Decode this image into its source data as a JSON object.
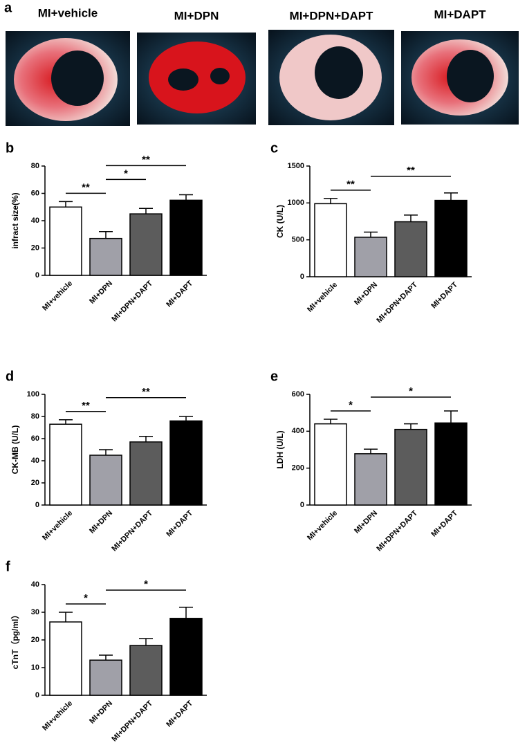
{
  "image_panel": {
    "label": "a",
    "captions": [
      "MI+vehicle",
      "MI+DPN",
      "MI+DPN+DAPT",
      "MI+DAPT"
    ]
  },
  "chart_data": [
    {
      "type": "bar",
      "panel": "b",
      "y_label": "infract size(%)",
      "categories": [
        "MI+vehicle",
        "MI+DPN",
        "MI+DPN+DAPT",
        "MI+DAPT"
      ],
      "values": [
        50,
        27,
        45,
        55
      ],
      "errors": [
        4,
        5,
        4,
        4
      ],
      "colors": [
        "#ffffff",
        "#a0a0a8",
        "#5c5c5c",
        "#000000"
      ],
      "ylim": [
        0,
        80
      ],
      "yticks": [
        0,
        20,
        40,
        60,
        80
      ],
      "comparisons": [
        {
          "groups": [
            0,
            1
          ],
          "label": "**"
        },
        {
          "groups": [
            1,
            2
          ],
          "label": "*"
        },
        {
          "groups": [
            1,
            3
          ],
          "label": "**"
        }
      ]
    },
    {
      "type": "bar",
      "panel": "c",
      "y_label": "CK (U/L)",
      "categories": [
        "MI+vehicle",
        "MI+DPN",
        "MI+DPN+DAPT",
        "MI+DAPT"
      ],
      "values": [
        990,
        535,
        745,
        1035
      ],
      "errors": [
        70,
        70,
        90,
        100
      ],
      "colors": [
        "#ffffff",
        "#a0a0a8",
        "#5c5c5c",
        "#000000"
      ],
      "ylim": [
        0,
        1500
      ],
      "yticks": [
        0,
        500,
        1000,
        1500
      ],
      "comparisons": [
        {
          "groups": [
            0,
            1
          ],
          "label": "**"
        },
        {
          "groups": [
            1,
            3
          ],
          "label": "**"
        }
      ]
    },
    {
      "type": "bar",
      "panel": "d",
      "y_label": "CK-MB (U/L)",
      "categories": [
        "MI+vehicle",
        "MI+DPN",
        "MI+DPN+DAPT",
        "MI+DAPT"
      ],
      "values": [
        73,
        45,
        57,
        76
      ],
      "errors": [
        4,
        5,
        5,
        4
      ],
      "colors": [
        "#ffffff",
        "#a0a0a8",
        "#5c5c5c",
        "#000000"
      ],
      "ylim": [
        0,
        100
      ],
      "yticks": [
        0,
        20,
        40,
        60,
        80,
        100
      ],
      "comparisons": [
        {
          "groups": [
            0,
            1
          ],
          "label": "**"
        },
        {
          "groups": [
            1,
            3
          ],
          "label": "**"
        }
      ]
    },
    {
      "type": "bar",
      "panel": "e",
      "y_label": "LDH (U/L)",
      "categories": [
        "MI+vehicle",
        "MI+DPN",
        "MI+DPN+DAPT",
        "MI+DAPT"
      ],
      "values": [
        440,
        278,
        410,
        445
      ],
      "errors": [
        25,
        25,
        30,
        65
      ],
      "colors": [
        "#ffffff",
        "#a0a0a8",
        "#5c5c5c",
        "#000000"
      ],
      "ylim": [
        0,
        600
      ],
      "yticks": [
        0,
        200,
        400,
        600
      ],
      "comparisons": [
        {
          "groups": [
            0,
            1
          ],
          "label": "*"
        },
        {
          "groups": [
            1,
            3
          ],
          "label": "*"
        }
      ]
    },
    {
      "type": "bar",
      "panel": "f",
      "y_label": "cTnT（pg/ml）",
      "categories": [
        "MI+vehicle",
        "MI+DPN",
        "MI+DPN+DAPT",
        "MI+DAPT"
      ],
      "values": [
        26.5,
        12.7,
        18,
        27.8
      ],
      "errors": [
        3.5,
        1.8,
        2.5,
        4
      ],
      "colors": [
        "#ffffff",
        "#a0a0a8",
        "#5c5c5c",
        "#000000"
      ],
      "ylim": [
        0,
        40
      ],
      "yticks": [
        0,
        10,
        20,
        30,
        40
      ],
      "comparisons": [
        {
          "groups": [
            0,
            1
          ],
          "label": "*"
        },
        {
          "groups": [
            1,
            3
          ],
          "label": "*"
        }
      ]
    }
  ]
}
